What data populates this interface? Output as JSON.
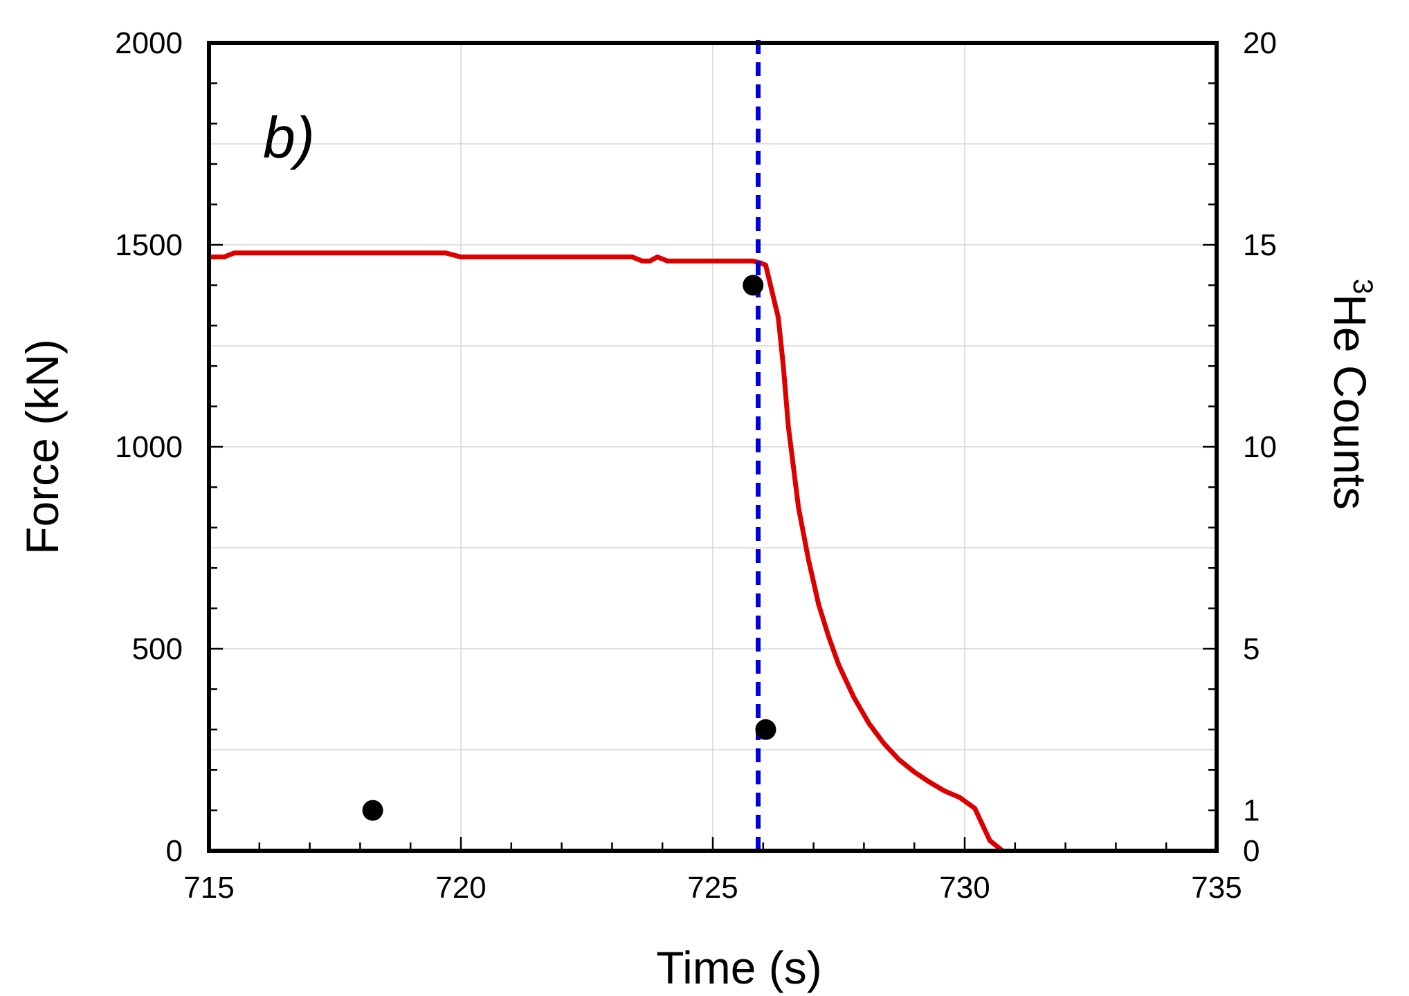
{
  "chart_data": {
    "type": "line",
    "panel_label": "b)",
    "xlabel": "Time (s)",
    "ylabel": "Force (kN)",
    "y2label_superscript": "3",
    "y2label_text": "He Counts",
    "xlim": [
      715,
      735
    ],
    "ylim": [
      0,
      2000
    ],
    "y2lim": [
      0,
      20
    ],
    "x_ticks": [
      715,
      720,
      725,
      730,
      735
    ],
    "x_tick_labels": [
      "715",
      "720",
      "725",
      "730",
      "735"
    ],
    "y_ticks": [
      0,
      500,
      1000,
      1500,
      2000
    ],
    "y_tick_labels": [
      "0",
      "500",
      "1000",
      "1500",
      "2000"
    ],
    "y2_ticks": [
      0,
      1,
      5,
      10,
      15,
      20
    ],
    "y2_tick_labels": [
      "0",
      "1",
      "5",
      "10",
      "15",
      "20"
    ],
    "grid": true,
    "series": [
      {
        "axis": "left",
        "style": "line",
        "color": "#dd0000",
        "points": [
          [
            715.0,
            1470
          ],
          [
            715.3,
            1470
          ],
          [
            715.5,
            1480
          ],
          [
            716.0,
            1480
          ],
          [
            717.0,
            1480
          ],
          [
            718.0,
            1480
          ],
          [
            719.0,
            1480
          ],
          [
            719.7,
            1480
          ],
          [
            720.0,
            1470
          ],
          [
            721.0,
            1470
          ],
          [
            722.0,
            1470
          ],
          [
            723.0,
            1470
          ],
          [
            723.4,
            1470
          ],
          [
            723.6,
            1460
          ],
          [
            723.75,
            1460
          ],
          [
            723.9,
            1470
          ],
          [
            724.1,
            1460
          ],
          [
            724.5,
            1460
          ],
          [
            725.0,
            1460
          ],
          [
            725.8,
            1460
          ],
          [
            725.95,
            1455
          ],
          [
            726.05,
            1450
          ],
          [
            726.3,
            1320
          ],
          [
            726.4,
            1200
          ],
          [
            726.5,
            1050
          ],
          [
            726.7,
            850
          ],
          [
            726.9,
            720
          ],
          [
            727.1,
            610
          ],
          [
            727.3,
            530
          ],
          [
            727.5,
            460
          ],
          [
            727.8,
            380
          ],
          [
            728.1,
            315
          ],
          [
            728.4,
            265
          ],
          [
            728.7,
            225
          ],
          [
            729.0,
            195
          ],
          [
            729.3,
            170
          ],
          [
            729.6,
            148
          ],
          [
            729.9,
            132
          ],
          [
            730.2,
            105
          ],
          [
            730.5,
            25
          ],
          [
            730.75,
            0
          ]
        ]
      },
      {
        "axis": "right",
        "style": "markers",
        "color": "#000000",
        "points": [
          [
            718.25,
            1
          ],
          [
            725.8,
            14
          ],
          [
            726.05,
            3
          ]
        ]
      }
    ],
    "vline": {
      "x": 725.9,
      "color": "#0000dd",
      "style": "dashed"
    }
  }
}
